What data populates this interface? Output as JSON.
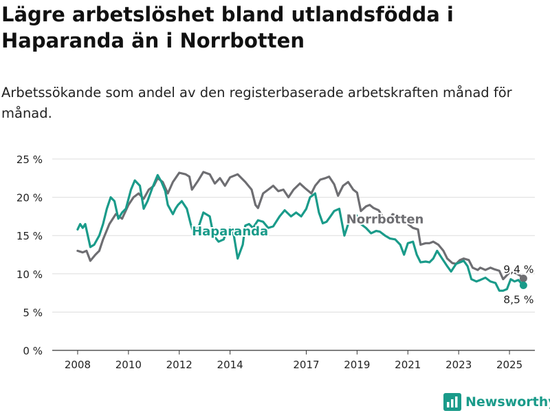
{
  "header": {
    "title": "Lägre arbetslöshet bland utlandsfödda i Haparanda än i Norrbotten",
    "subtitle": "Arbetssökande som andel av den registerbaserade arbetskraften månad för månad."
  },
  "brand": {
    "name": "Newsworthy",
    "icon": "bar-chart-logo-icon",
    "color": "#1a9b8a"
  },
  "chart_data": {
    "type": "line",
    "ylim": [
      0,
      25
    ],
    "y_ticks": [
      0,
      5,
      10,
      15,
      20,
      25
    ],
    "y_tick_labels": [
      "0 %",
      "5 %",
      "10 %",
      "15 %",
      "20 %",
      "25 %"
    ],
    "x_ticks": [
      2008,
      2010,
      2012,
      2014,
      2017,
      2019,
      2021,
      2023,
      2025
    ],
    "x_tick_labels": [
      "2008",
      "2010",
      "2012",
      "2014",
      "2017",
      "2019",
      "2021",
      "2023",
      "2025"
    ],
    "grid": true,
    "legend": "direct labels",
    "series": [
      {
        "name": "Norrbotten",
        "color": "#6e6e72",
        "end_label": "9,4 %",
        "points": [
          [
            2008.0,
            13.0
          ],
          [
            2008.2,
            12.8
          ],
          [
            2008.35,
            13.0
          ],
          [
            2008.5,
            11.7
          ],
          [
            2008.7,
            12.5
          ],
          [
            2008.85,
            13.0
          ],
          [
            2009.0,
            14.5
          ],
          [
            2009.25,
            16.5
          ],
          [
            2009.5,
            17.8
          ],
          [
            2009.75,
            17.2
          ],
          [
            2010.0,
            19.0
          ],
          [
            2010.2,
            20.0
          ],
          [
            2010.4,
            20.5
          ],
          [
            2010.6,
            19.8
          ],
          [
            2010.8,
            21.0
          ],
          [
            2011.0,
            21.5
          ],
          [
            2011.15,
            22.5
          ],
          [
            2011.35,
            22.0
          ],
          [
            2011.55,
            20.5
          ],
          [
            2011.75,
            22.0
          ],
          [
            2012.0,
            23.2
          ],
          [
            2012.25,
            23.0
          ],
          [
            2012.4,
            22.7
          ],
          [
            2012.5,
            21.0
          ],
          [
            2012.75,
            22.2
          ],
          [
            2012.95,
            23.3
          ],
          [
            2013.2,
            23.0
          ],
          [
            2013.4,
            21.8
          ],
          [
            2013.6,
            22.5
          ],
          [
            2013.8,
            21.5
          ],
          [
            2014.0,
            22.6
          ],
          [
            2014.3,
            23.0
          ],
          [
            2014.6,
            22.0
          ],
          [
            2014.85,
            21.0
          ],
          [
            2015.0,
            19.0
          ],
          [
            2015.1,
            18.6
          ],
          [
            2015.3,
            20.5
          ],
          [
            2015.5,
            21.0
          ],
          [
            2015.7,
            21.5
          ],
          [
            2015.9,
            20.8
          ],
          [
            2016.1,
            21.0
          ],
          [
            2016.3,
            20.0
          ],
          [
            2016.5,
            21.0
          ],
          [
            2016.75,
            21.8
          ],
          [
            2016.95,
            21.2
          ],
          [
            2017.2,
            20.5
          ],
          [
            2017.35,
            21.5
          ],
          [
            2017.55,
            22.3
          ],
          [
            2017.75,
            22.5
          ],
          [
            2017.9,
            22.7
          ],
          [
            2018.1,
            21.7
          ],
          [
            2018.25,
            20.2
          ],
          [
            2018.45,
            21.5
          ],
          [
            2018.65,
            22.0
          ],
          [
            2018.85,
            21.0
          ],
          [
            2019.0,
            20.6
          ],
          [
            2019.15,
            18.2
          ],
          [
            2019.35,
            18.8
          ],
          [
            2019.5,
            19.0
          ],
          [
            2019.65,
            18.6
          ],
          [
            2019.85,
            18.3
          ],
          [
            2020.0,
            17.5
          ],
          [
            2020.2,
            16.8
          ],
          [
            2020.4,
            17.8
          ],
          [
            2020.6,
            17.5
          ],
          [
            2020.8,
            17.5
          ],
          [
            2021.0,
            16.5
          ],
          [
            2021.2,
            16.0
          ],
          [
            2021.4,
            15.8
          ],
          [
            2021.5,
            13.8
          ],
          [
            2021.7,
            14.0
          ],
          [
            2021.85,
            14.0
          ],
          [
            2022.0,
            14.2
          ],
          [
            2022.2,
            13.8
          ],
          [
            2022.4,
            13.0
          ],
          [
            2022.55,
            12.0
          ],
          [
            2022.75,
            11.4
          ],
          [
            2022.9,
            11.3
          ],
          [
            2023.05,
            11.8
          ],
          [
            2023.2,
            12.0
          ],
          [
            2023.4,
            11.8
          ],
          [
            2023.55,
            10.8
          ],
          [
            2023.75,
            10.5
          ],
          [
            2023.85,
            10.8
          ],
          [
            2024.05,
            10.5
          ],
          [
            2024.25,
            10.8
          ],
          [
            2024.4,
            10.6
          ],
          [
            2024.6,
            10.4
          ],
          [
            2024.75,
            9.3
          ],
          [
            2024.95,
            10.0
          ],
          [
            2025.1,
            10.3
          ],
          [
            2025.3,
            10.0
          ],
          [
            2025.5,
            9.6
          ],
          [
            2025.55,
            9.4
          ]
        ]
      },
      {
        "name": "Haparanda",
        "color": "#1a9b8a",
        "end_label": "8,5 %",
        "points": [
          [
            2008.0,
            15.8
          ],
          [
            2008.1,
            16.5
          ],
          [
            2008.2,
            16.0
          ],
          [
            2008.3,
            16.5
          ],
          [
            2008.5,
            13.5
          ],
          [
            2008.65,
            13.8
          ],
          [
            2008.85,
            15.0
          ],
          [
            2009.0,
            16.5
          ],
          [
            2009.15,
            18.5
          ],
          [
            2009.3,
            20.0
          ],
          [
            2009.45,
            19.5
          ],
          [
            2009.6,
            17.2
          ],
          [
            2009.75,
            18.0
          ],
          [
            2009.9,
            18.5
          ],
          [
            2010.1,
            21.0
          ],
          [
            2010.25,
            22.2
          ],
          [
            2010.45,
            21.5
          ],
          [
            2010.6,
            18.5
          ],
          [
            2010.75,
            19.5
          ],
          [
            2010.95,
            21.3
          ],
          [
            2011.15,
            22.9
          ],
          [
            2011.3,
            22.0
          ],
          [
            2011.45,
            20.8
          ],
          [
            2011.55,
            19.0
          ],
          [
            2011.75,
            17.8
          ],
          [
            2011.85,
            18.5
          ],
          [
            2011.95,
            19.0
          ],
          [
            2012.1,
            19.5
          ],
          [
            2012.3,
            18.5
          ],
          [
            2012.45,
            16.5
          ],
          [
            2012.6,
            15.0
          ],
          [
            2012.8,
            16.5
          ],
          [
            2012.95,
            18.0
          ],
          [
            2013.2,
            17.5
          ],
          [
            2013.35,
            15.0
          ],
          [
            2013.55,
            14.2
          ],
          [
            2013.75,
            14.5
          ],
          [
            2013.85,
            15.5
          ],
          [
            2014.0,
            16.0
          ],
          [
            2014.15,
            15.0
          ],
          [
            2014.3,
            12.0
          ],
          [
            2014.5,
            13.8
          ],
          [
            2014.6,
            16.3
          ],
          [
            2014.75,
            16.5
          ],
          [
            2014.9,
            16.0
          ],
          [
            2015.1,
            17.0
          ],
          [
            2015.3,
            16.8
          ],
          [
            2015.5,
            16.0
          ],
          [
            2015.7,
            16.2
          ],
          [
            2015.95,
            17.5
          ],
          [
            2016.15,
            18.3
          ],
          [
            2016.4,
            17.5
          ],
          [
            2016.6,
            18.0
          ],
          [
            2016.8,
            17.5
          ],
          [
            2017.0,
            18.5
          ],
          [
            2017.15,
            20.0
          ],
          [
            2017.35,
            20.5
          ],
          [
            2017.5,
            18.0
          ],
          [
            2017.65,
            16.6
          ],
          [
            2017.8,
            16.8
          ],
          [
            2017.95,
            17.5
          ],
          [
            2018.1,
            18.2
          ],
          [
            2018.3,
            18.5
          ],
          [
            2018.5,
            15.0
          ],
          [
            2018.65,
            16.5
          ],
          [
            2018.8,
            17.5
          ],
          [
            2018.95,
            17.8
          ],
          [
            2019.15,
            16.5
          ],
          [
            2019.35,
            16.0
          ],
          [
            2019.55,
            15.3
          ],
          [
            2019.75,
            15.6
          ],
          [
            2019.9,
            15.5
          ],
          [
            2020.1,
            15.0
          ],
          [
            2020.3,
            14.6
          ],
          [
            2020.5,
            14.5
          ],
          [
            2020.7,
            13.8
          ],
          [
            2020.85,
            12.5
          ],
          [
            2021.0,
            14.0
          ],
          [
            2021.2,
            14.2
          ],
          [
            2021.35,
            12.5
          ],
          [
            2021.5,
            11.5
          ],
          [
            2021.7,
            11.6
          ],
          [
            2021.85,
            11.5
          ],
          [
            2022.0,
            12.0
          ],
          [
            2022.15,
            13.0
          ],
          [
            2022.35,
            12.0
          ],
          [
            2022.55,
            11.0
          ],
          [
            2022.7,
            10.3
          ],
          [
            2022.9,
            11.3
          ],
          [
            2023.05,
            11.5
          ],
          [
            2023.2,
            11.7
          ],
          [
            2023.35,
            11.0
          ],
          [
            2023.5,
            9.3
          ],
          [
            2023.7,
            9.0
          ],
          [
            2023.85,
            9.2
          ],
          [
            2024.05,
            9.5
          ],
          [
            2024.25,
            9.0
          ],
          [
            2024.45,
            8.8
          ],
          [
            2024.6,
            7.8
          ],
          [
            2024.75,
            7.8
          ],
          [
            2024.9,
            8.0
          ],
          [
            2025.05,
            9.3
          ],
          [
            2025.2,
            9.0
          ],
          [
            2025.35,
            9.2
          ],
          [
            2025.45,
            8.8
          ],
          [
            2025.55,
            8.5
          ]
        ]
      }
    ]
  }
}
